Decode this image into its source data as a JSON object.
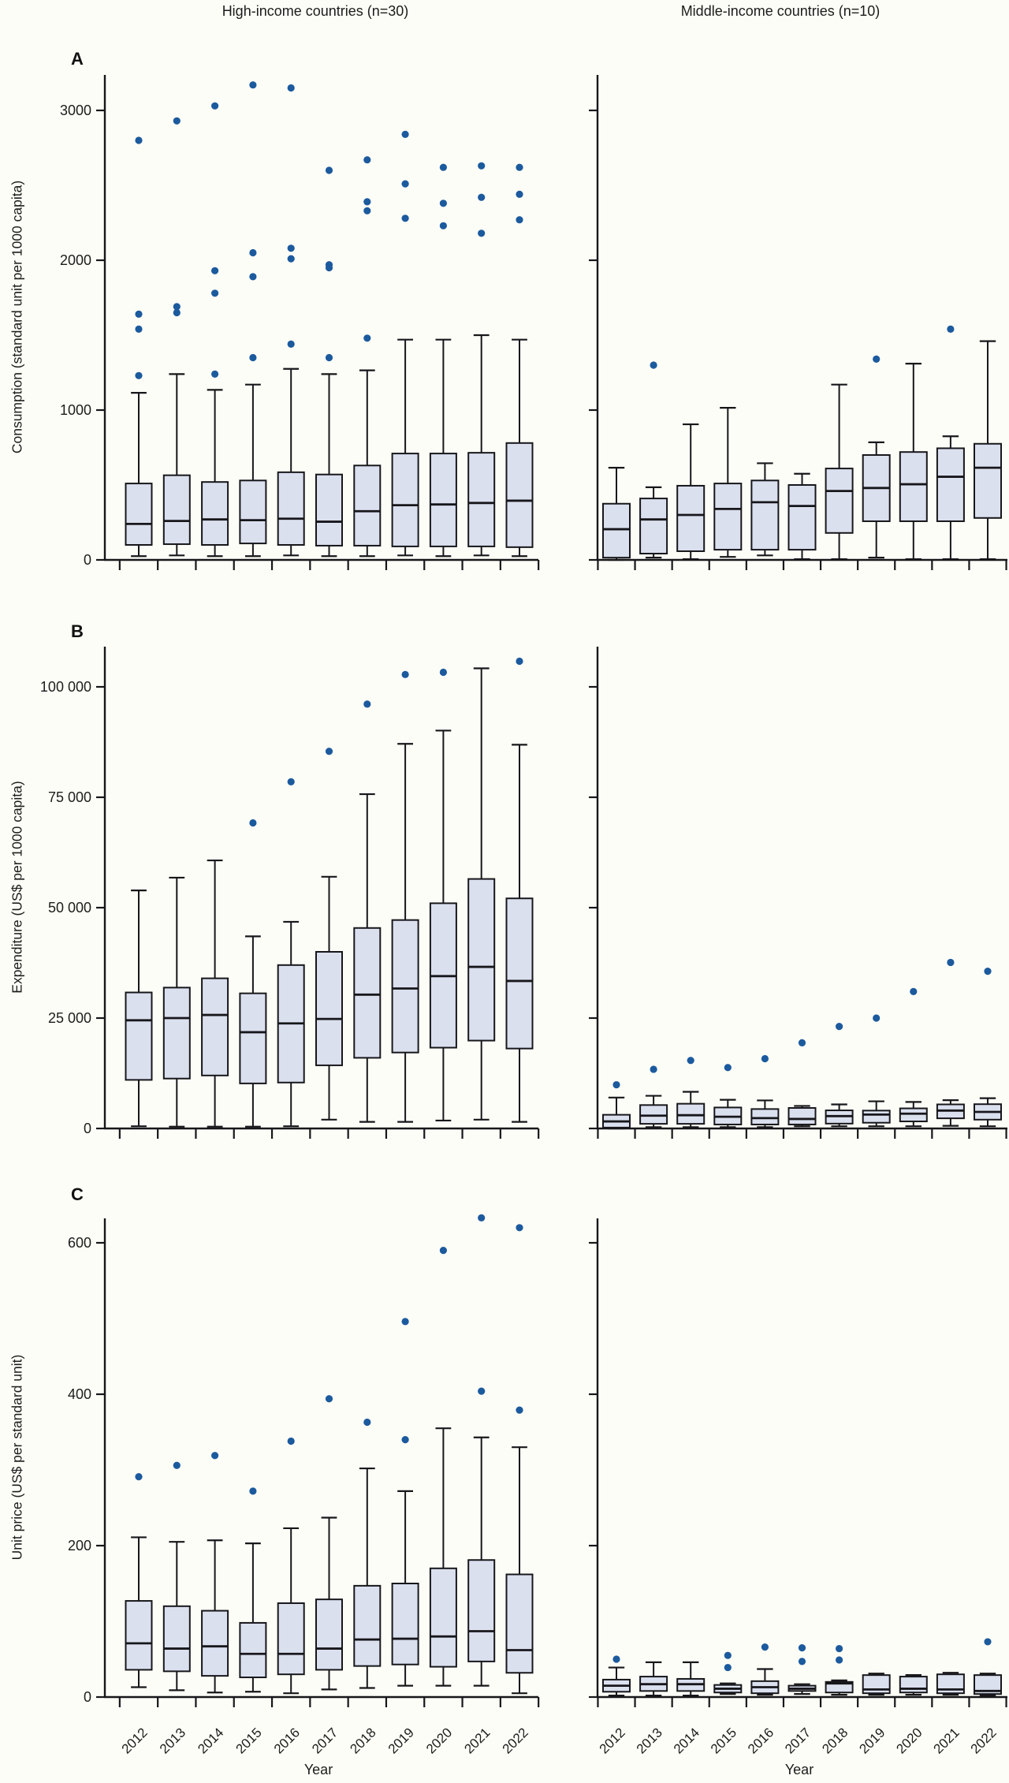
{
  "column_headers": [
    "High-income countries (n=30)",
    "Middle-income countries (n=10)"
  ],
  "x_axis_label": "Year",
  "years": [
    2012,
    2013,
    2014,
    2015,
    2016,
    2017,
    2018,
    2019,
    2020,
    2021,
    2022
  ],
  "colors": {
    "box_fill": "#dbe0ef",
    "box_stroke": "#17171b",
    "outlier_dot": "#1c5a9e",
    "background": "#fdfdf7",
    "text": "#1c1c1c"
  },
  "rows": [
    {
      "label": "A",
      "y_label": "Consumption (standard unit per 1000 capita)",
      "yticks": [
        0,
        1000,
        2000,
        3000
      ],
      "ytick_labels": [
        "0",
        "1000",
        "2000",
        "3000"
      ],
      "ylim": [
        0,
        3240
      ]
    },
    {
      "label": "B",
      "y_label": "Expenditure (US$ per 1000 capita)",
      "yticks": [
        0,
        25000,
        50000,
        75000,
        100000
      ],
      "ytick_labels": [
        "0",
        "25 000",
        "50 000",
        "75 000",
        "100 000"
      ],
      "ylim": [
        0,
        109000
      ]
    },
    {
      "label": "C",
      "y_label": "Unit price (US$ per standard unit)",
      "yticks": [
        0,
        200,
        400,
        600
      ],
      "ytick_labels": [
        "0",
        "200",
        "400",
        "600"
      ],
      "ylim": [
        0,
        632
      ]
    }
  ],
  "chart_data": [
    {
      "id": "A-high-income",
      "type": "box",
      "row": "A",
      "column": "High-income countries (n=30)",
      "ylabel": "Consumption (standard unit per 1000 capita)",
      "years": [
        2012,
        2013,
        2014,
        2015,
        2016,
        2017,
        2018,
        2019,
        2020,
        2021,
        2022
      ],
      "min": [
        25,
        30,
        25,
        25,
        30,
        25,
        25,
        30,
        25,
        30,
        25
      ],
      "q1": [
        100,
        105,
        100,
        110,
        100,
        95,
        95,
        90,
        90,
        90,
        85
      ],
      "median": [
        240,
        260,
        270,
        265,
        275,
        255,
        325,
        365,
        370,
        380,
        395
      ],
      "q3": [
        510,
        565,
        520,
        530,
        585,
        570,
        630,
        710,
        710,
        715,
        780
      ],
      "max": [
        1115,
        1240,
        1135,
        1170,
        1275,
        1240,
        1265,
        1470,
        1470,
        1500,
        1470
      ],
      "outliers": [
        [
          1230,
          1540,
          1640,
          2800
        ],
        [
          1650,
          1690,
          2930
        ],
        [
          1240,
          1780,
          1930,
          3030
        ],
        [
          1350,
          1890,
          2050,
          3170
        ],
        [
          1440,
          2010,
          2080,
          3150
        ],
        [
          1350,
          1950,
          1970,
          2600
        ],
        [
          1480,
          2330,
          2390,
          2670
        ],
        [
          2280,
          2510,
          2840
        ],
        [
          2230,
          2380,
          2620
        ],
        [
          2180,
          2420,
          2630
        ],
        [
          2270,
          2440,
          2620
        ]
      ]
    },
    {
      "id": "A-middle-income",
      "type": "box",
      "row": "A",
      "column": "Middle-income countries (n=10)",
      "ylabel": "Consumption (standard unit per 1000 capita)",
      "years": [
        2012,
        2013,
        2014,
        2015,
        2016,
        2017,
        2018,
        2019,
        2020,
        2021,
        2022
      ],
      "min": [
        0,
        15,
        5,
        20,
        30,
        5,
        5,
        15,
        5,
        5,
        5
      ],
      "q1": [
        15,
        42,
        58,
        68,
        68,
        68,
        180,
        258,
        258,
        258,
        280
      ],
      "median": [
        205,
        270,
        300,
        340,
        385,
        360,
        460,
        480,
        505,
        555,
        615
      ],
      "q3": [
        375,
        410,
        495,
        510,
        530,
        500,
        610,
        700,
        720,
        745,
        775
      ],
      "max": [
        615,
        485,
        905,
        1015,
        645,
        575,
        1170,
        785,
        1310,
        825,
        1460
      ],
      "outliers": [
        [],
        [
          1300
        ],
        [],
        [],
        [],
        [],
        [],
        [
          1340
        ],
        [],
        [
          1540
        ],
        []
      ]
    },
    {
      "id": "B-high-income",
      "type": "box",
      "row": "B",
      "column": "High-income countries (n=30)",
      "ylabel": "Expenditure (US$ per 1000 capita)",
      "years": [
        2012,
        2013,
        2014,
        2015,
        2016,
        2017,
        2018,
        2019,
        2020,
        2021,
        2022
      ],
      "min": [
        500,
        400,
        400,
        400,
        500,
        2000,
        1500,
        1500,
        1800,
        2000,
        1500
      ],
      "q1": [
        11000,
        11300,
        12000,
        10200,
        10400,
        14300,
        16000,
        17200,
        18300,
        19900,
        18100
      ],
      "median": [
        24500,
        25000,
        25700,
        21800,
        23800,
        24800,
        30300,
        31700,
        34500,
        36600,
        33400
      ],
      "q3": [
        30800,
        31900,
        34000,
        30600,
        37000,
        40000,
        45400,
        47200,
        51000,
        56500,
        52100
      ],
      "max": [
        53900,
        56800,
        60700,
        43500,
        46800,
        57000,
        75700,
        87100,
        90100,
        104200,
        86900
      ],
      "outliers": [
        [],
        [],
        [],
        [
          69200
        ],
        [
          78500
        ],
        [
          85400
        ],
        [
          96100
        ],
        [
          102800
        ],
        [
          103300
        ],
        [],
        [
          105800
        ]
      ]
    },
    {
      "id": "B-middle-income",
      "type": "box",
      "row": "B",
      "column": "Middle-income countries (n=10)",
      "ylabel": "Expenditure (US$ per 1000 capita)",
      "years": [
        2012,
        2013,
        2014,
        2015,
        2016,
        2017,
        2018,
        2019,
        2020,
        2021,
        2022
      ],
      "min": [
        0,
        300,
        300,
        300,
        300,
        500,
        500,
        500,
        500,
        600,
        500
      ],
      "q1": [
        200,
        1050,
        1050,
        900,
        900,
        900,
        1100,
        1300,
        1600,
        2300,
        2000
      ],
      "median": [
        1600,
        2900,
        3000,
        2650,
        2350,
        2150,
        2800,
        3150,
        3350,
        4050,
        3750
      ],
      "q3": [
        3100,
        5300,
        5600,
        4750,
        4400,
        4650,
        4100,
        4050,
        4550,
        5450,
        5500
      ],
      "max": [
        7000,
        7400,
        8300,
        6500,
        6350,
        5100,
        5450,
        6150,
        6000,
        6400,
        6850
      ],
      "outliers": [
        [
          9900
        ],
        [
          13400
        ],
        [
          15400
        ],
        [
          13800
        ],
        [
          15800
        ],
        [
          19400
        ],
        [
          23100
        ],
        [
          25000
        ],
        [
          31000
        ],
        [
          37600
        ],
        [
          35600
        ]
      ]
    },
    {
      "id": "C-high-income",
      "type": "box",
      "row": "C",
      "column": "High-income countries (n=30)",
      "ylabel": "Unit price (US$ per standard unit)",
      "years": [
        2012,
        2013,
        2014,
        2015,
        2016,
        2017,
        2018,
        2019,
        2020,
        2021,
        2022
      ],
      "min": [
        13,
        9,
        6,
        7,
        5,
        10,
        12,
        15,
        15,
        15,
        5
      ],
      "q1": [
        36,
        34,
        28,
        26,
        30,
        36,
        41,
        43,
        40,
        47,
        32
      ],
      "median": [
        71,
        64,
        67,
        57,
        57,
        64,
        76,
        77,
        80,
        87,
        62
      ],
      "q3": [
        127,
        120,
        114,
        98,
        124,
        129,
        147,
        150,
        170,
        181,
        162
      ],
      "max": [
        211,
        205,
        207,
        203,
        223,
        237,
        302,
        272,
        355,
        343,
        330
      ],
      "outliers": [
        [
          291
        ],
        [
          306
        ],
        [
          319
        ],
        [
          272
        ],
        [
          338
        ],
        [
          394
        ],
        [
          363
        ],
        [
          340,
          496
        ],
        [
          590
        ],
        [
          404,
          633
        ],
        [
          379,
          620
        ]
      ]
    },
    {
      "id": "C-middle-income",
      "type": "box",
      "row": "C",
      "column": "Middle-income countries (n=10)",
      "ylabel": "Unit price (US$ per standard unit)",
      "years": [
        2012,
        2013,
        2014,
        2015,
        2016,
        2017,
        2018,
        2019,
        2020,
        2021,
        2022
      ],
      "min": [
        2,
        2,
        2,
        4,
        3,
        4,
        3,
        3,
        3,
        3,
        2
      ],
      "q1": [
        7,
        8,
        8,
        6,
        5,
        8,
        6,
        5,
        6,
        5,
        4
      ],
      "median": [
        15,
        17,
        17,
        11,
        13,
        11,
        18,
        10,
        11,
        10,
        8
      ],
      "q3": [
        23,
        27,
        24,
        16,
        21,
        15,
        20,
        29,
        27,
        30,
        29
      ],
      "max": [
        39,
        46,
        46,
        18,
        37,
        17,
        22,
        31,
        29,
        32,
        31
      ],
      "outliers": [
        [
          50
        ],
        [],
        [],
        [
          39,
          55
        ],
        [
          66
        ],
        [
          47,
          65
        ],
        [
          49,
          64
        ],
        [],
        [],
        [],
        [
          73
        ]
      ]
    }
  ]
}
